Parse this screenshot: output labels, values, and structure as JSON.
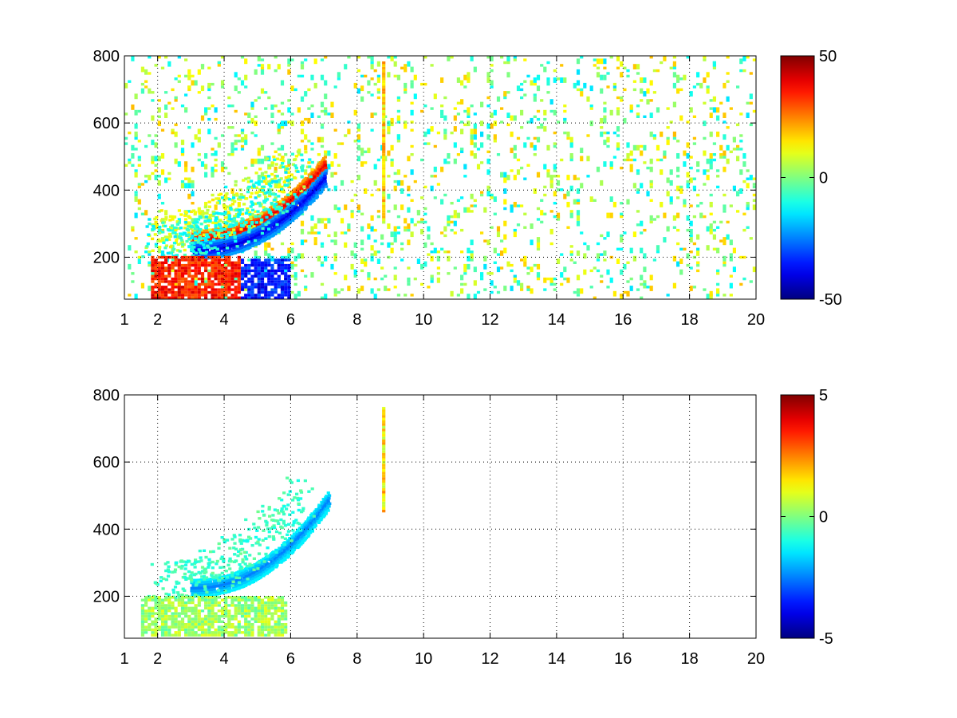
{
  "chart_data": [
    {
      "type": "heatmap",
      "title": "",
      "xlabel": "",
      "ylabel": "",
      "xlim": [
        1,
        20
      ],
      "ylim": [
        75,
        800
      ],
      "x_ticks": [
        1,
        2,
        4,
        6,
        8,
        10,
        12,
        14,
        16,
        18,
        20
      ],
      "x_tick_labels": [
        "1",
        "2",
        "4",
        "6",
        "8",
        "10",
        "12",
        "14",
        "16",
        "18",
        "20"
      ],
      "y_ticks": [
        200,
        400,
        600,
        800
      ],
      "y_tick_labels": [
        "200",
        "400",
        "600",
        "800"
      ],
      "grid": "dotted",
      "colormap": "jet",
      "clim": [
        -50,
        50
      ],
      "colorbar_ticks": [
        -50,
        0,
        50
      ],
      "colorbar_tick_labels": [
        "-50",
        "0",
        "50"
      ],
      "features": [
        {
          "kind": "arc",
          "x_start": 3.0,
          "y_start": 250,
          "x_end": 7.0,
          "y_end": 470,
          "value": 40,
          "note": "red/orange band"
        },
        {
          "kind": "arc",
          "x_start": 3.0,
          "y_start": 215,
          "x_end": 7.0,
          "y_end": 430,
          "value": -40,
          "note": "blue band"
        },
        {
          "kind": "band",
          "x_start": 1.8,
          "x_end": 4.5,
          "y_start": 75,
          "y_end": 200,
          "value": 35
        },
        {
          "kind": "band",
          "x_start": 4.5,
          "x_end": 5.9,
          "y_start": 75,
          "y_end": 190,
          "value": -35
        },
        {
          "kind": "vertical_stripe",
          "x": 8.8,
          "y_start": 300,
          "y_end": 780,
          "value": 15
        }
      ]
    },
    {
      "type": "heatmap",
      "title": "",
      "xlabel": "",
      "ylabel": "",
      "xlim": [
        1,
        20
      ],
      "ylim": [
        75,
        800
      ],
      "x_ticks": [
        1,
        2,
        4,
        6,
        8,
        10,
        12,
        14,
        16,
        18,
        20
      ],
      "x_tick_labels": [
        "1",
        "2",
        "4",
        "6",
        "8",
        "10",
        "12",
        "14",
        "16",
        "18",
        "20"
      ],
      "y_ticks": [
        200,
        400,
        600,
        800
      ],
      "y_tick_labels": [
        "200",
        "400",
        "600",
        "800"
      ],
      "grid": "dotted",
      "colormap": "jet",
      "clim": [
        -5,
        5
      ],
      "colorbar_ticks": [
        -5,
        0,
        5
      ],
      "colorbar_tick_labels": [
        "-5",
        "0",
        "5"
      ],
      "features": [
        {
          "kind": "arc",
          "x_start": 3.0,
          "y_start": 220,
          "x_end": 7.1,
          "y_end": 480,
          "value": -2.5,
          "note": "cyan/blue band"
        },
        {
          "kind": "band",
          "x_start": 1.5,
          "x_end": 5.8,
          "y_start": 80,
          "y_end": 200,
          "value": 0.3
        },
        {
          "kind": "vertical_stripe",
          "x": 8.8,
          "y_start": 450,
          "y_end": 760,
          "value": 1.5
        }
      ]
    }
  ]
}
